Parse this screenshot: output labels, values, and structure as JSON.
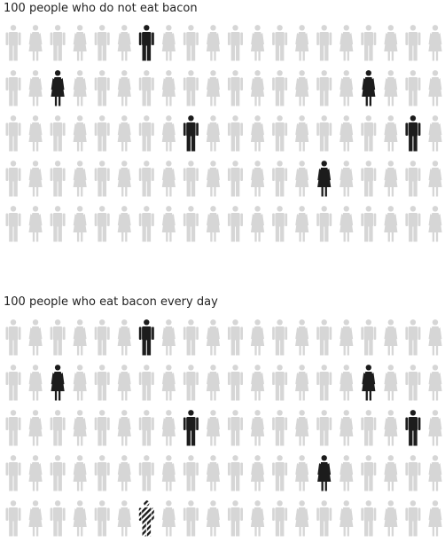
{
  "chart_data": [
    {
      "type": "icon-array",
      "title": "100 people who do not eat bacon",
      "rows": 5,
      "cols": 20,
      "total": 100,
      "highlighted_cancer_count": 6,
      "extra_cancer_count": 0,
      "highlighted": [
        {
          "row": 0,
          "col": 6,
          "figure": "man"
        },
        {
          "row": 1,
          "col": 2,
          "figure": "woman"
        },
        {
          "row": 1,
          "col": 16,
          "figure": "woman"
        },
        {
          "row": 2,
          "col": 8,
          "figure": "man"
        },
        {
          "row": 2,
          "col": 18,
          "figure": "man"
        },
        {
          "row": 3,
          "col": 14,
          "figure": "woman"
        }
      ],
      "extra": []
    },
    {
      "type": "icon-array",
      "title": "100 people who eat bacon every day",
      "rows": 5,
      "cols": 20,
      "total": 100,
      "highlighted_cancer_count": 6,
      "extra_cancer_count": 1,
      "highlighted": [
        {
          "row": 0,
          "col": 6,
          "figure": "man"
        },
        {
          "row": 1,
          "col": 2,
          "figure": "woman"
        },
        {
          "row": 1,
          "col": 16,
          "figure": "woman"
        },
        {
          "row": 2,
          "col": 8,
          "figure": "man"
        },
        {
          "row": 2,
          "col": 18,
          "figure": "man"
        },
        {
          "row": 3,
          "col": 14,
          "figure": "woman"
        }
      ],
      "extra": [
        {
          "row": 4,
          "col": 6,
          "figure": "man"
        }
      ]
    }
  ],
  "colors": {
    "neutral": "#d6d6d6",
    "highlight": "#1c1c1c",
    "stripe": "#1c1c1c",
    "text": "#222222"
  }
}
